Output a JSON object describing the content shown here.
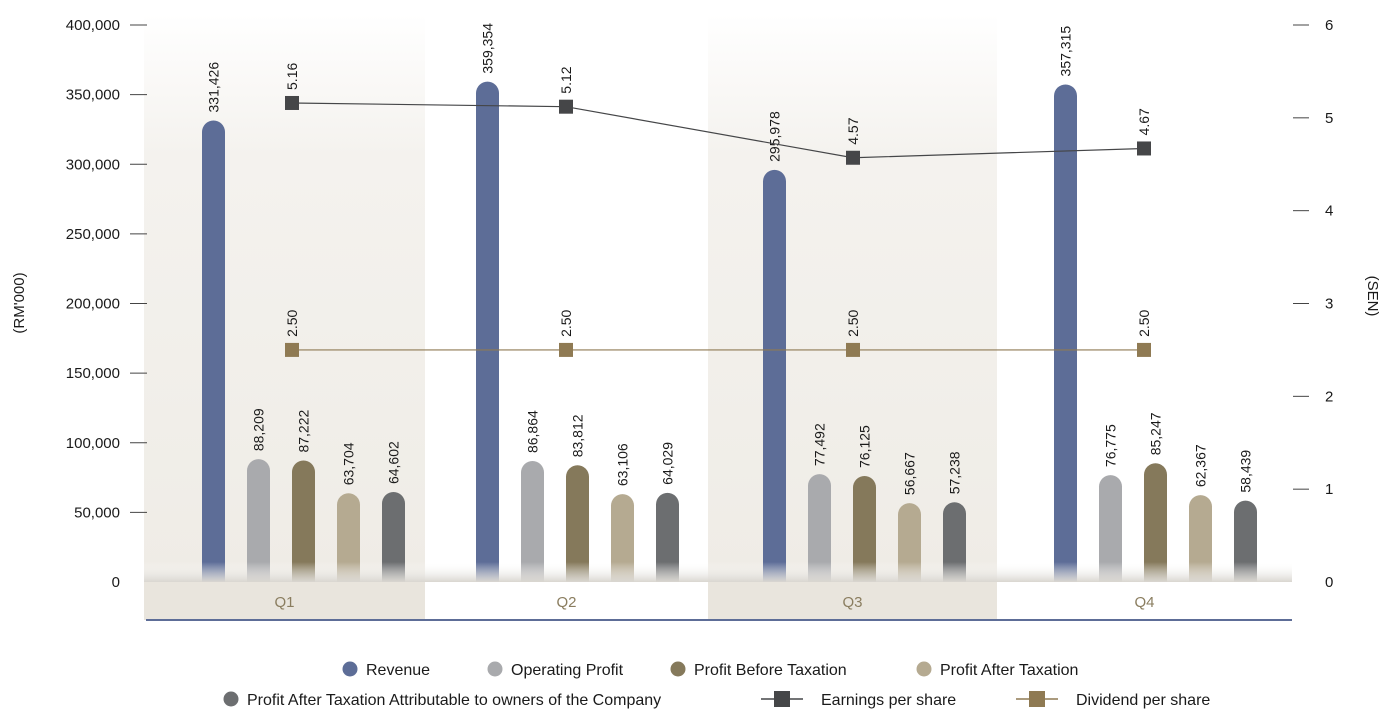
{
  "chart_data": {
    "type": "bar",
    "categories": [
      "Q1",
      "Q2",
      "Q3",
      "Q4"
    ],
    "ylabel": "(RM'000)",
    "y2label": "(SEN)",
    "ylim": [
      0,
      400000
    ],
    "y2lim": [
      0,
      6
    ],
    "y_ticks": [
      "0",
      "50,000",
      "100,000",
      "150,000",
      "200,000",
      "250,000",
      "300,000",
      "350,000",
      "400,000"
    ],
    "y2_ticks": [
      "0",
      "1",
      "2",
      "3",
      "4",
      "5",
      "6"
    ],
    "series": [
      {
        "name": "Revenue",
        "axis": "left",
        "color": "#5d6d97",
        "values": [
          331426,
          359354,
          295978,
          357315
        ],
        "labels": [
          "331,426",
          "359,354",
          "295,978",
          "357,315"
        ]
      },
      {
        "name": "Operating Profit",
        "axis": "left",
        "color": "#a9aaad",
        "values": [
          88209,
          86864,
          77492,
          76775
        ],
        "labels": [
          "88,209",
          "86,864",
          "77,492",
          "76,775"
        ]
      },
      {
        "name": "Profit Before Taxation",
        "axis": "left",
        "color": "#85795b",
        "values": [
          87222,
          83812,
          76125,
          85247
        ],
        "labels": [
          "87,222",
          "83,812",
          "76,125",
          "85,247"
        ]
      },
      {
        "name": "Profit After Taxation",
        "axis": "left",
        "color": "#b5aa91",
        "values": [
          63704,
          63106,
          56667,
          62367
        ],
        "labels": [
          "63,704",
          "63,106",
          "56,667",
          "62,367"
        ]
      },
      {
        "name": "Profit After Taxation Attributable to owners of the Company",
        "axis": "left",
        "color": "#6c6e70",
        "values": [
          64602,
          64029,
          57238,
          58439
        ],
        "labels": [
          "64,602",
          "64,029",
          "57,238",
          "58,439"
        ]
      }
    ],
    "line_series": [
      {
        "name": "Earnings per share",
        "axis": "right",
        "color": "#454648",
        "values": [
          5.16,
          5.12,
          4.57,
          4.67
        ],
        "labels": [
          "5.16",
          "5.12",
          "4.57",
          "4.67"
        ]
      },
      {
        "name": "Dividend per share",
        "axis": "right",
        "color": "#8f7a53",
        "values": [
          2.5,
          2.5,
          2.5,
          2.5
        ],
        "labels": [
          "2.50",
          "2.50",
          "2.50",
          "2.50"
        ]
      }
    ],
    "legend_position": "bottom-center",
    "grid": false
  }
}
